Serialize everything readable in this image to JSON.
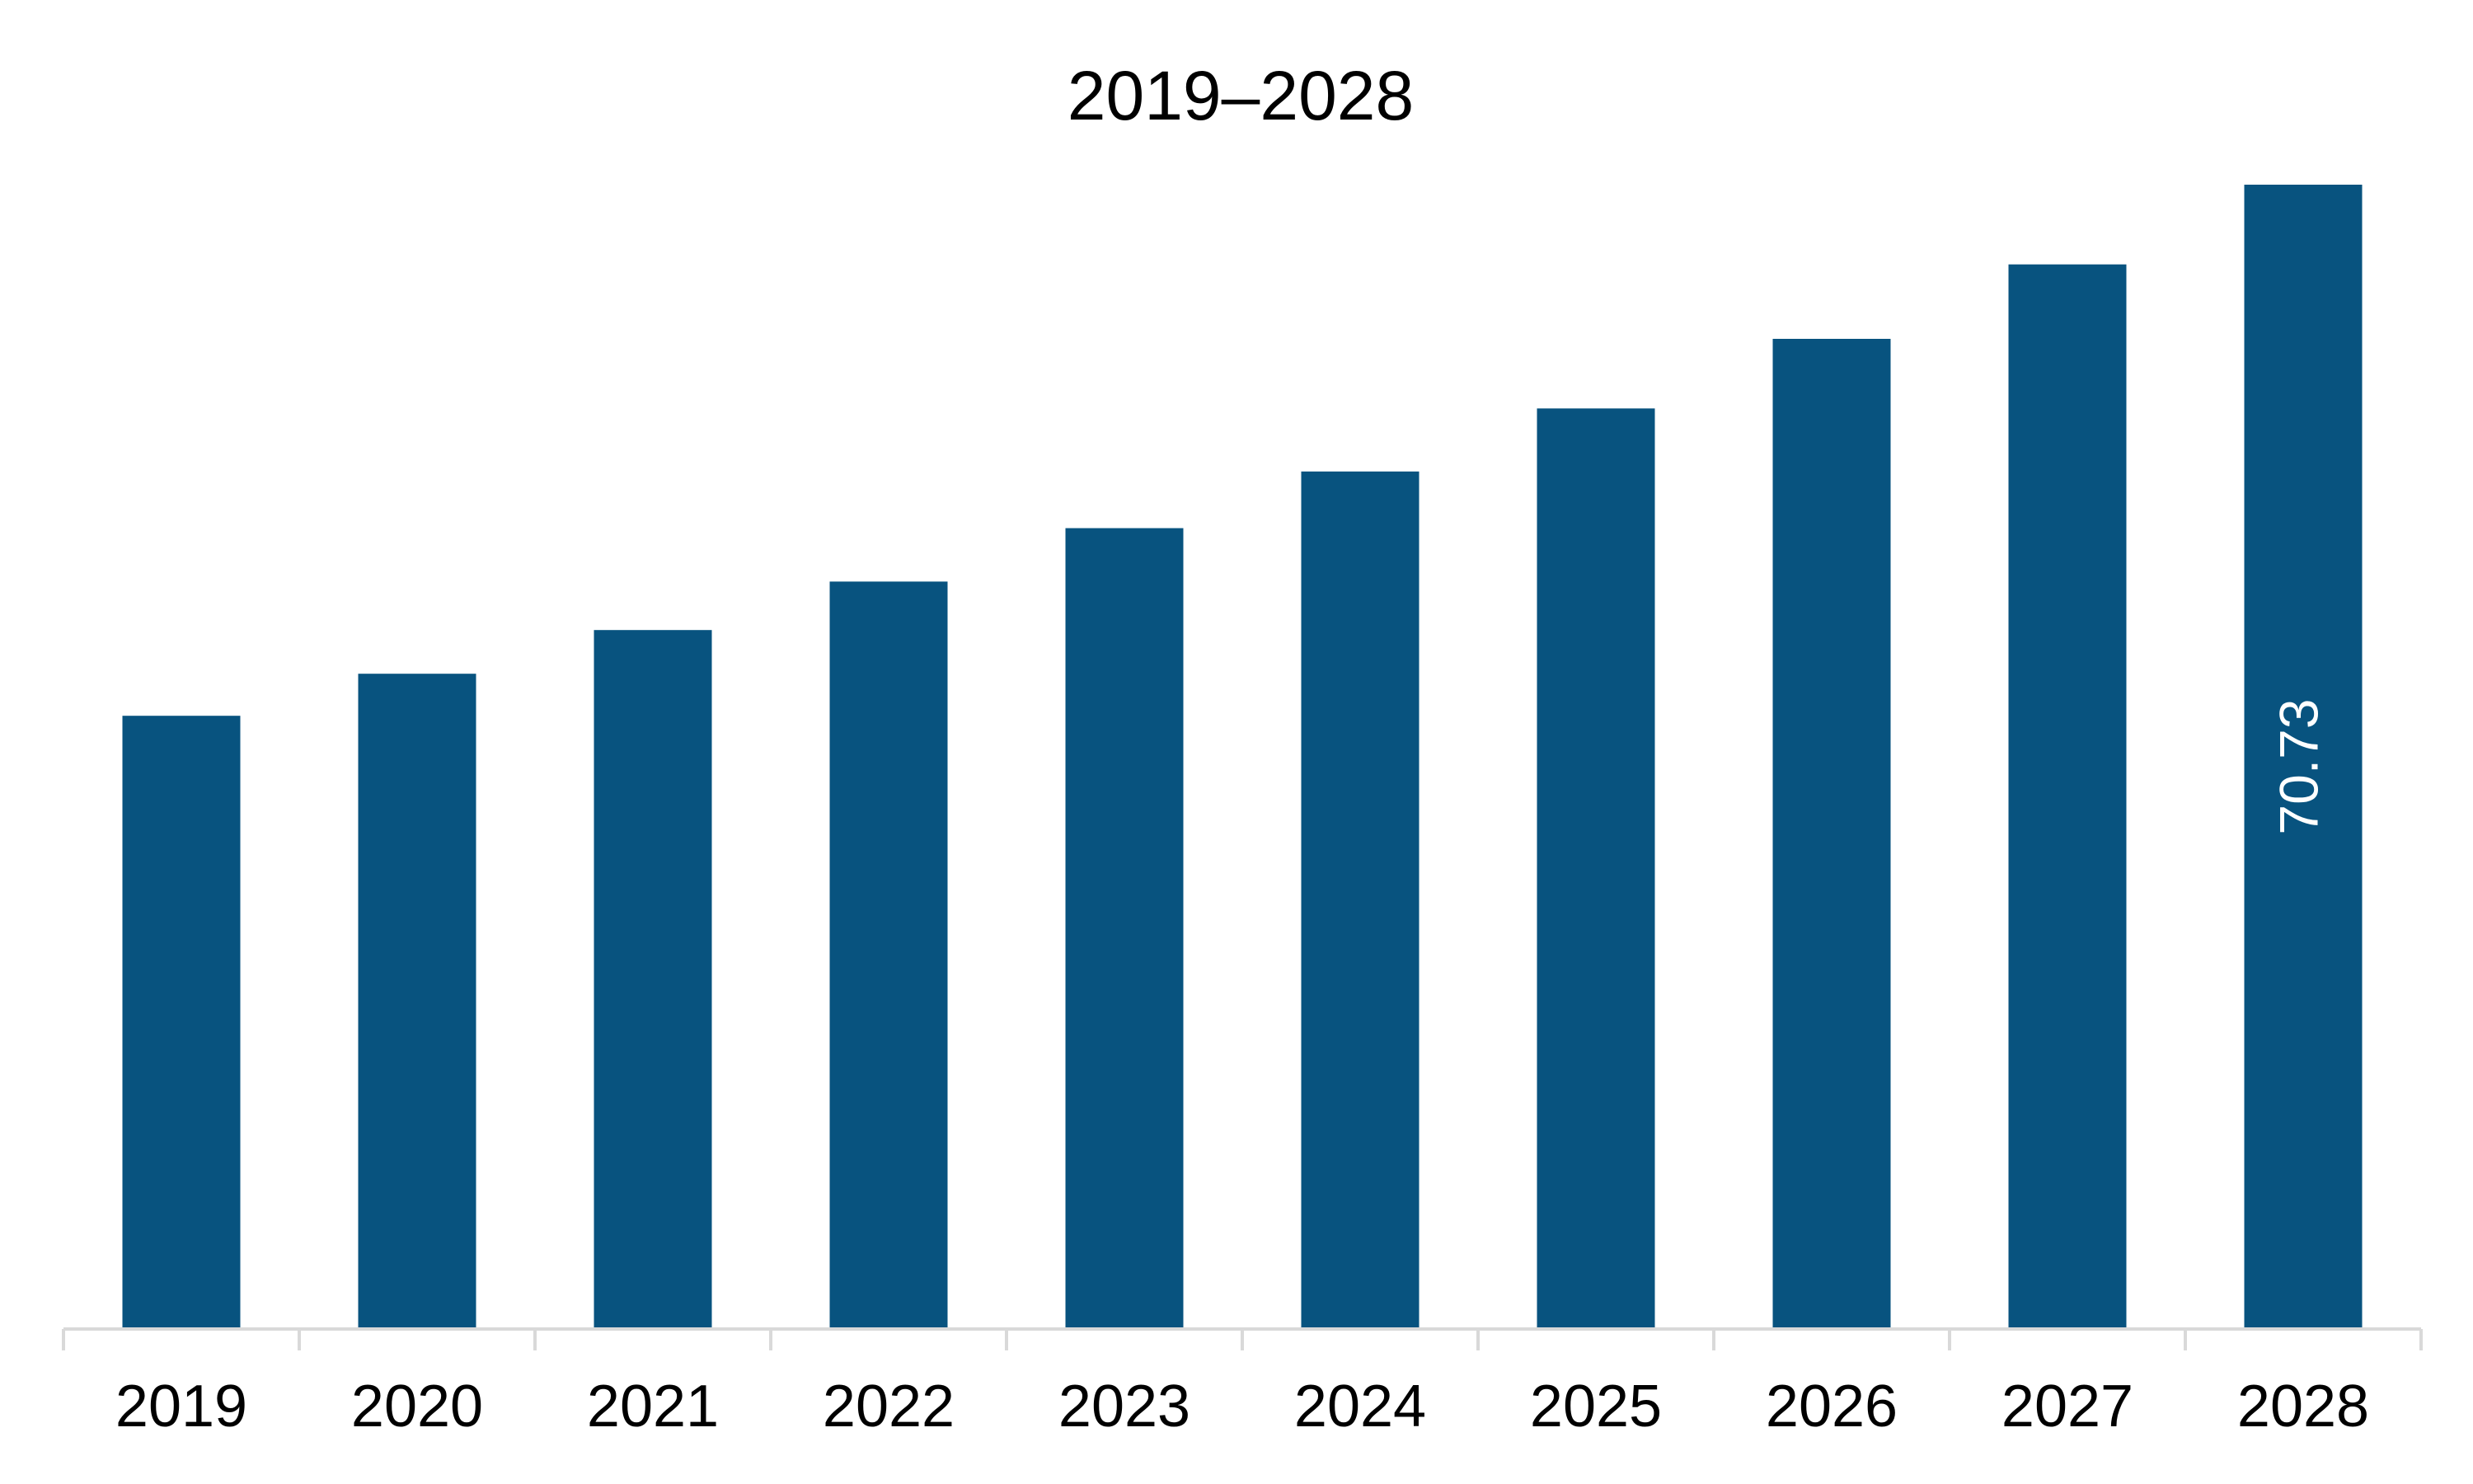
{
  "chart_data": {
    "type": "bar",
    "title": "2019–2028",
    "categories": [
      "2019",
      "2020",
      "2021",
      "2022",
      "2023",
      "2024",
      "2025",
      "2026",
      "2027",
      "2028"
    ],
    "values": [
      37.9,
      40.5,
      43.2,
      46.2,
      49.5,
      53.0,
      56.9,
      61.2,
      65.8,
      70.73
    ],
    "data_labels": [
      {
        "category": "2028",
        "text": "70.73"
      }
    ],
    "xlabel": "",
    "ylabel": "",
    "ylim": [
      0,
      74.5
    ],
    "grid": false,
    "legend": "none",
    "colors": {
      "bar": "#08537F",
      "axis": "#D9D9D9",
      "text": "#000000",
      "data_label": "#FFFFFF"
    }
  }
}
